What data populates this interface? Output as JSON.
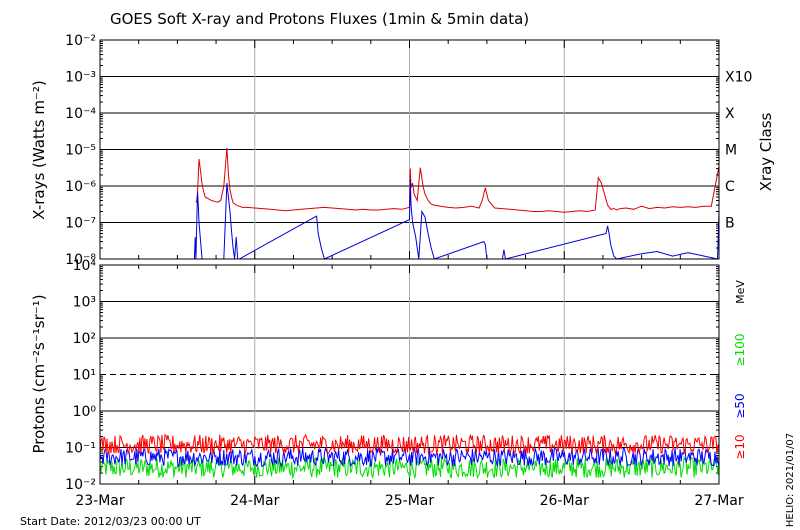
{
  "title": "GOES Soft X-ray and Protons Fluxes   (1min & 5min data)",
  "start_date": "Start Date: 2012/03/23 00:00 UT",
  "credit": "HELIO: 2021/01/07",
  "colors": {
    "xray_long": "#dd0000",
    "xray_short": "#0000dd",
    "proton_10": "#ff0000",
    "proton_50": "#0000ff",
    "proton_100": "#00dd00",
    "grid": "#000000",
    "day_lines": "#aaaaaa"
  },
  "chart_data": [
    {
      "type": "line",
      "panel": "xray",
      "ylabel": "X-rays (Watts m⁻²)",
      "yscale": "log",
      "ylim": [
        1e-08,
        0.01
      ],
      "ytick_labels": [
        "10⁻⁸",
        "10⁻⁷",
        "10⁻⁶",
        "10⁻⁵",
        "10⁻⁴",
        "10⁻³",
        "10⁻²"
      ],
      "right_label": "Xray Class",
      "class_labels": [
        {
          "label": "B",
          "value": 1e-07
        },
        {
          "label": "C",
          "value": 1e-06
        },
        {
          "label": "M",
          "value": 1e-05
        },
        {
          "label": "X",
          "value": 0.0001
        },
        {
          "label": "X10",
          "value": 0.001
        }
      ],
      "xlim": [
        "2012-03-23",
        "2012-03-27"
      ],
      "x_ticks": [
        "23-Mar",
        "24-Mar",
        "25-Mar",
        "26-Mar",
        "27-Mar"
      ],
      "series": [
        {
          "key": "long",
          "x": [
            0.62,
            0.625,
            0.63,
            0.64,
            0.65,
            0.66,
            0.67,
            0.68,
            0.7,
            0.72,
            0.74,
            0.76,
            0.78,
            0.8,
            0.82,
            0.83,
            0.835,
            0.84,
            0.85,
            0.86,
            0.88,
            0.9,
            0.92,
            0.95,
            1.0,
            1.05,
            1.1,
            1.15,
            1.2,
            1.25,
            1.3,
            1.35,
            1.4,
            1.45,
            1.5,
            1.55,
            1.6,
            1.65,
            1.7,
            1.75,
            1.8,
            1.85,
            1.9,
            1.95,
            2.0,
            2.005,
            2.01,
            2.02,
            2.03,
            2.05,
            2.07,
            2.08,
            2.09,
            2.1,
            2.12,
            2.14,
            2.16,
            2.2,
            2.25,
            2.3,
            2.35,
            2.4,
            2.45,
            2.47,
            2.49,
            2.51,
            2.55,
            2.6,
            2.65,
            2.7,
            2.75,
            2.8,
            2.85,
            2.9,
            2.95,
            3.0,
            3.05,
            3.1,
            3.15,
            3.2,
            3.22,
            3.24,
            3.26,
            3.28,
            3.3,
            3.32,
            3.34,
            3.36,
            3.4,
            3.45,
            3.5,
            3.55,
            3.6,
            3.65,
            3.7,
            3.75,
            3.8,
            3.85,
            3.9,
            3.95,
            4.0
          ],
          "y": [
            3.5e-07,
            4e-07,
            6e-07,
            5.5e-06,
            2.5e-06,
            1.1e-06,
            7e-07,
            5e-07,
            4.5e-07,
            4e-07,
            3.8e-07,
            3.6e-07,
            4e-07,
            1e-06,
            1.1e-05,
            2.2e-06,
            1.2e-06,
            8e-07,
            5e-07,
            3.5e-07,
            3e-07,
            2.8e-07,
            2.6e-07,
            2.6e-07,
            2.5e-07,
            2.4e-07,
            2.3e-07,
            2.2e-07,
            2.1e-07,
            2.2e-07,
            2.3e-07,
            2.4e-07,
            2.5e-07,
            2.6e-07,
            2.5e-07,
            2.4e-07,
            2.3e-07,
            2.2e-07,
            2.3e-07,
            2.2e-07,
            2.2e-07,
            2.3e-07,
            2.4e-07,
            2.3e-07,
            2.6e-07,
            3e-06,
            9e-07,
            1.2e-06,
            6e-07,
            4e-07,
            3.2e-06,
            1.6e-06,
            9e-07,
            6e-07,
            4e-07,
            3.2e-07,
            3e-07,
            2.8e-07,
            2.6e-07,
            2.5e-07,
            2.6e-07,
            2.8e-07,
            2.5e-07,
            4e-07,
            9e-07,
            4e-07,
            2.5e-07,
            2.4e-07,
            2.3e-07,
            2.2e-07,
            2.1e-07,
            2e-07,
            2e-07,
            2.1e-07,
            2e-07,
            1.9e-07,
            2e-07,
            2.1e-07,
            2e-07,
            2.2e-07,
            1.7e-06,
            1.2e-06,
            6e-07,
            3e-07,
            2.3e-07,
            2.4e-07,
            2.2e-07,
            2.4e-07,
            2.5e-07,
            2.3e-07,
            2.8e-07,
            2.4e-07,
            2.6e-07,
            2.5e-07,
            2.7e-07,
            2.6e-07,
            2.7e-07,
            2.6e-07,
            2.8e-07,
            2.8e-07,
            3.5e-06
          ]
        },
        {
          "key": "short",
          "x": [
            0.61,
            0.615,
            0.62,
            0.63,
            0.635,
            0.64,
            0.65,
            0.66,
            0.67,
            0.8,
            0.81,
            0.82,
            0.83,
            0.84,
            0.85,
            0.86,
            0.87,
            0.88,
            0.89,
            0.9,
            1.4,
            1.41,
            1.43,
            1.45,
            2.0,
            2.005,
            2.01,
            2.02,
            2.04,
            2.06,
            2.08,
            2.1,
            2.12,
            2.14,
            2.16,
            2.48,
            2.49,
            2.5,
            2.52,
            2.6,
            2.61,
            2.62,
            3.27,
            3.28,
            3.29,
            3.3,
            3.32,
            3.34,
            3.5,
            3.6,
            3.7,
            3.8,
            3.99,
            4.0
          ],
          "y": [
            1e-08,
            4e-08,
            1e-08,
            7e-07,
            3e-07,
            1e-07,
            3e-08,
            1e-08,
            1e-08,
            1e-08,
            1e-07,
            1.2e-06,
            5e-07,
            2e-07,
            6e-08,
            2e-08,
            1e-08,
            4e-08,
            1e-08,
            1e-08,
            1.5e-07,
            5e-08,
            2e-08,
            1e-08,
            1.2e-07,
            1.5e-06,
            3e-07,
            1e-07,
            4e-08,
            1e-08,
            2e-07,
            1.4e-07,
            5e-08,
            2e-08,
            1e-08,
            3e-08,
            2.5e-08,
            1e-08,
            1e-08,
            1e-08,
            1.8e-08,
            1e-08,
            5e-08,
            8e-08,
            5e-08,
            2.5e-08,
            1.2e-08,
            1e-08,
            1.4e-08,
            1.6e-08,
            1.2e-08,
            1.5e-08,
            1e-08,
            2e-07
          ]
        }
      ]
    },
    {
      "type": "line",
      "panel": "protons",
      "ylabel": "Protons (cm⁻²s⁻¹sr⁻¹)",
      "yscale": "log",
      "ylim": [
        0.01,
        10000
      ],
      "ytick_labels": [
        "10⁻²",
        "10⁻¹",
        "10⁰",
        "10¹",
        "10²",
        "10³",
        "10⁴"
      ],
      "threshold_line": 10,
      "unit_label": "MeV",
      "xlim": [
        "2012-03-23",
        "2012-03-27"
      ],
      "x_ticks": [
        "23-Mar",
        "24-Mar",
        "25-Mar",
        "26-Mar",
        "27-Mar"
      ],
      "series": [
        {
          "name": "≥10",
          "key": "p10",
          "typical": 0.12,
          "min": 0.07,
          "max": 0.28
        },
        {
          "name": "≥50",
          "key": "p50",
          "typical": 0.055,
          "min": 0.03,
          "max": 0.11
        },
        {
          "name": "≥100",
          "key": "p100",
          "typical": 0.028,
          "min": 0.015,
          "max": 0.065
        }
      ]
    }
  ]
}
